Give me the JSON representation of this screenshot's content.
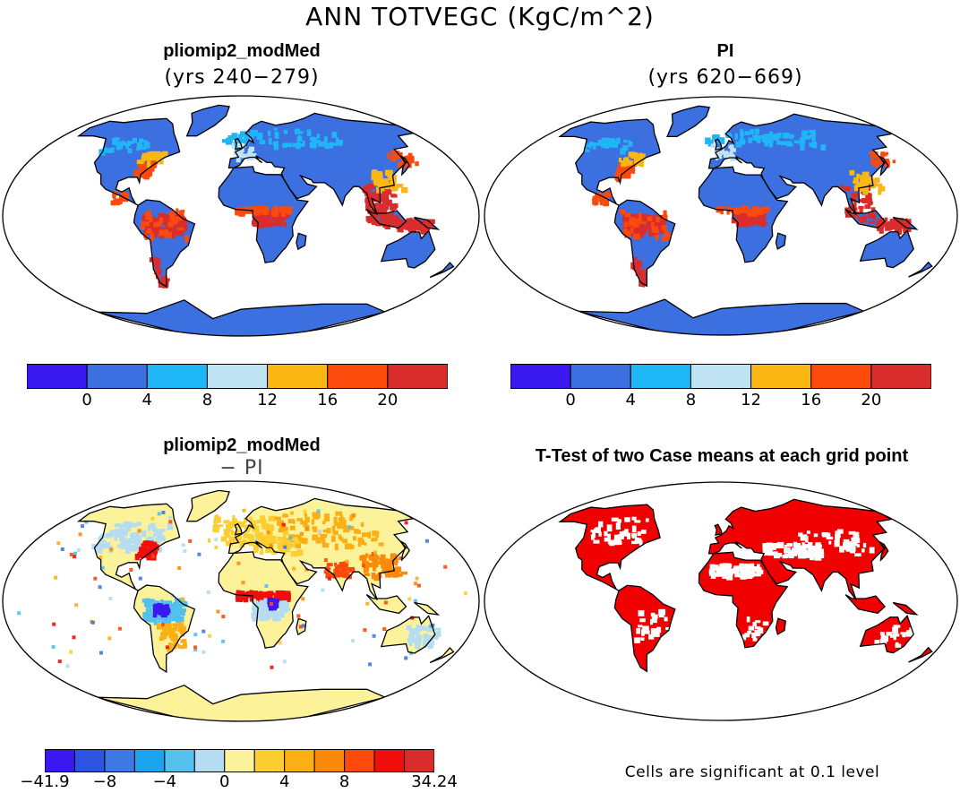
{
  "title": "ANN TOTVEGC (KgC/m^2)",
  "panels": [
    {
      "name": "pliomip2-modmed-panel",
      "title": "pliomip2_modMed",
      "subtitle": "(yrs 240−279)"
    },
    {
      "name": "pi-panel",
      "title": "PI",
      "subtitle": "(yrs 620−669)"
    },
    {
      "name": "difference-panel",
      "title": "pliomip2_modMed",
      "subtitle": "− PI"
    },
    {
      "name": "ttest-panel",
      "title": "T-Test of two Case means at each grid point",
      "subtitle": ""
    }
  ],
  "colorbar_abs": {
    "colors": [
      "#3a18f0",
      "#3c6fe0",
      "#1fb6f5",
      "#bfe3f2",
      "#fbb714",
      "#fb4a0c",
      "#d92c2c"
    ],
    "tick_labels": [
      "0",
      "4",
      "8",
      "12",
      "16",
      "20"
    ]
  },
  "colorbar_diff": {
    "colors": [
      "#3a18f0",
      "#2d54e0",
      "#3c79e4",
      "#1aa4f0",
      "#53c0ee",
      "#b5dcf0",
      "#fcf29a",
      "#fcce30",
      "#fbaf15",
      "#fb8a0a",
      "#fb4a0c",
      "#f20d0d",
      "#d92c2c"
    ],
    "tick_labels": [
      "−41.9",
      "−8",
      "−4",
      "0",
      "4",
      "8",
      "34.24"
    ]
  },
  "significance_note": "Cells are significant at 0.1 level",
  "colors": {
    "ocean": "#ffffff",
    "land_base": "#3c6fe0",
    "tropical_high": "#d92c2c",
    "diff_base": "#fcf29a",
    "significant": "#f00000"
  }
}
